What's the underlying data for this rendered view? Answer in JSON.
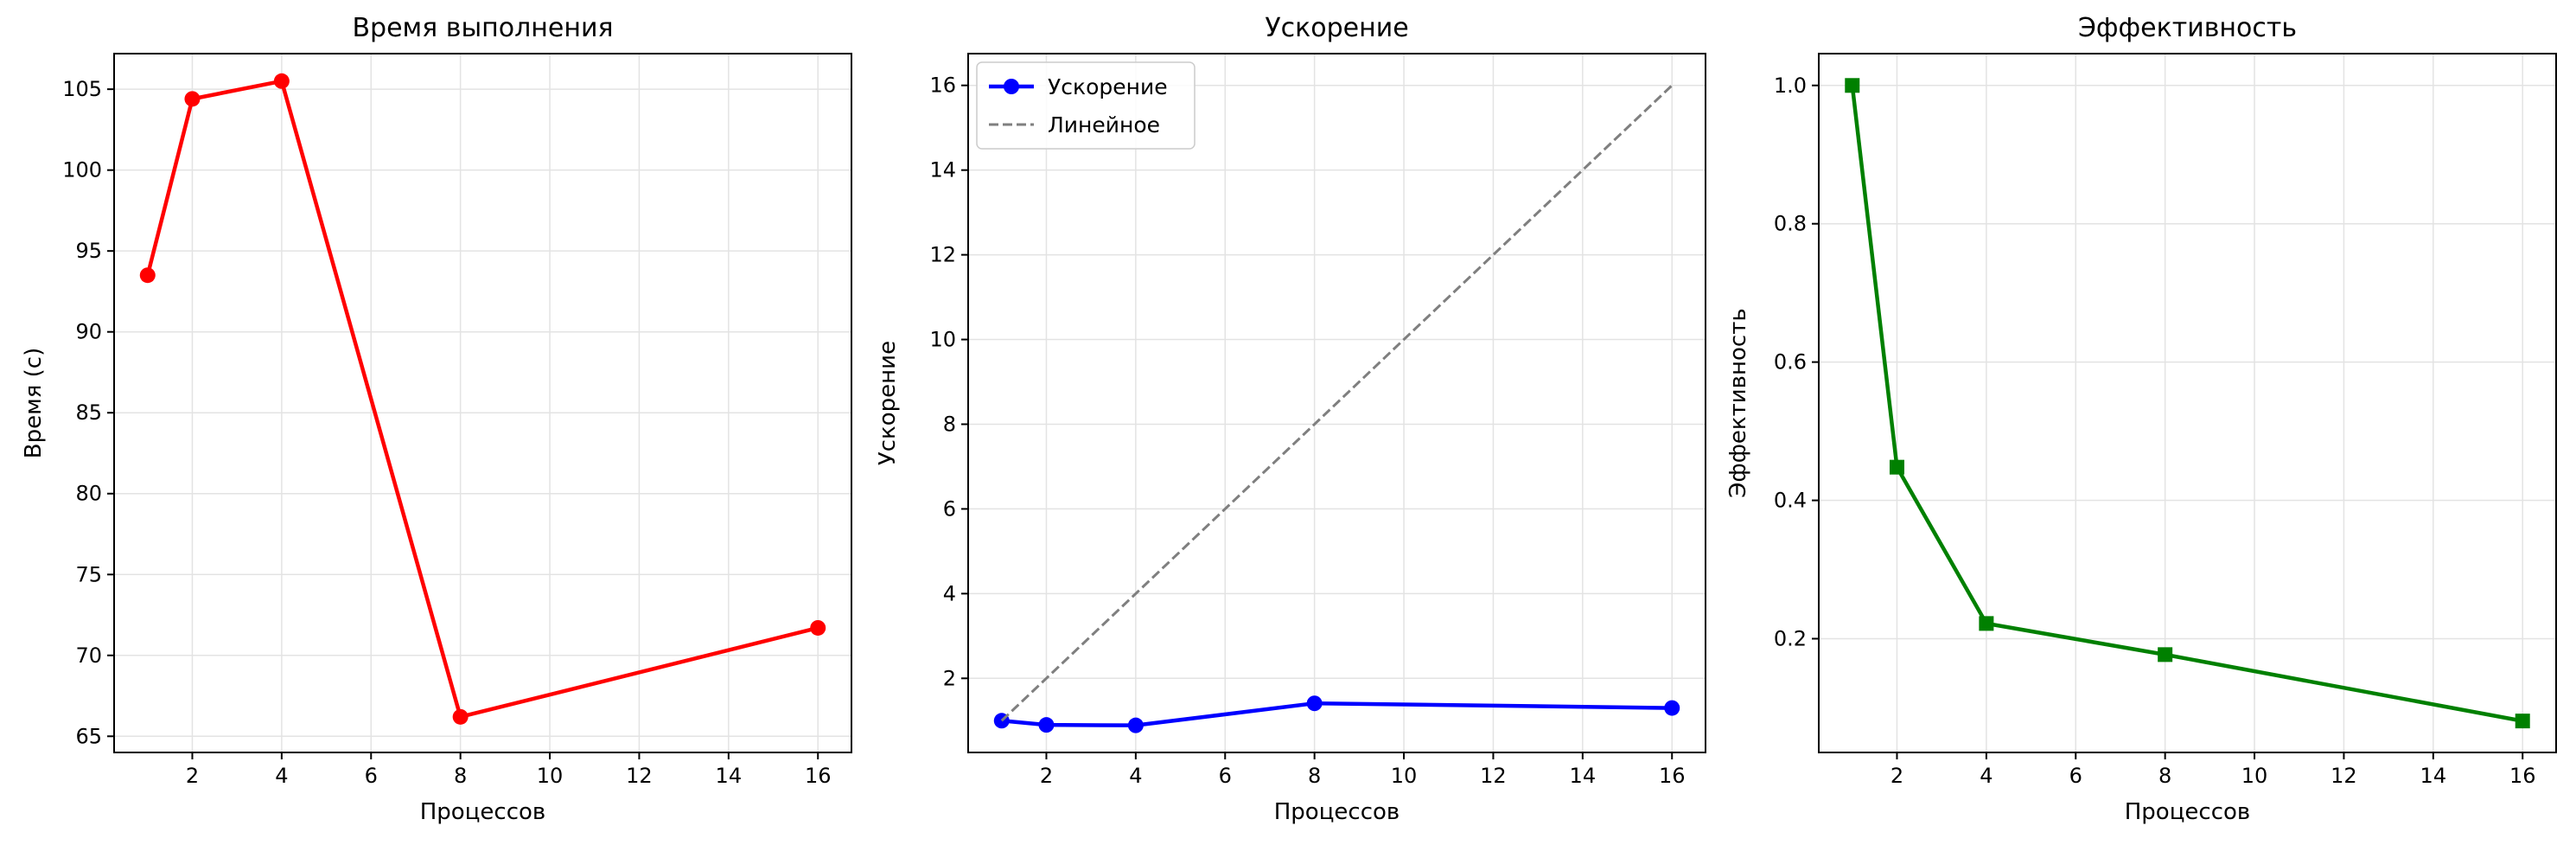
{
  "chart_data": [
    {
      "type": "line",
      "title": "Время выполнения",
      "xlabel": "Процессов",
      "ylabel": "Время (с)",
      "xlim": [
        0.25,
        16.75
      ],
      "ylim": [
        64.0,
        107.2
      ],
      "xticks": [
        2,
        4,
        6,
        8,
        10,
        12,
        14,
        16
      ],
      "yticks": [
        65,
        70,
        75,
        80,
        85,
        90,
        95,
        100,
        105
      ],
      "grid": true,
      "series": [
        {
          "x": [
            1,
            2,
            4,
            8,
            16
          ],
          "y": [
            93.5,
            104.4,
            105.5,
            66.2,
            71.7
          ],
          "color": "#ff0000",
          "marker": "circle",
          "line": "solid"
        }
      ]
    },
    {
      "type": "line",
      "title": "Ускорение",
      "xlabel": "Процессов",
      "ylabel": "Ускорение",
      "xlim": [
        0.25,
        16.75
      ],
      "ylim": [
        0.25,
        16.75
      ],
      "xticks": [
        2,
        4,
        6,
        8,
        10,
        12,
        14,
        16
      ],
      "yticks": [
        2,
        4,
        6,
        8,
        10,
        12,
        14,
        16
      ],
      "grid": true,
      "legend_position": "top-left",
      "series": [
        {
          "name": "Ускорение",
          "x": [
            1,
            2,
            4,
            8,
            16
          ],
          "y": [
            1.0,
            0.9,
            0.89,
            1.41,
            1.3
          ],
          "color": "#0000ff",
          "marker": "circle",
          "line": "solid"
        },
        {
          "name": "Линейное",
          "x": [
            1,
            16
          ],
          "y": [
            1,
            16
          ],
          "color": "#7f7f7f",
          "marker": "none",
          "line": "dashed"
        }
      ]
    },
    {
      "type": "line",
      "title": "Эффективность",
      "xlabel": "Процессов",
      "ylabel": "Эффективность",
      "xlim": [
        0.25,
        16.75
      ],
      "ylim": [
        0.0355,
        1.046
      ],
      "xticks": [
        2,
        4,
        6,
        8,
        10,
        12,
        14,
        16
      ],
      "yticks": [
        0.2,
        0.4,
        0.6,
        0.8,
        1.0
      ],
      "grid": true,
      "series": [
        {
          "x": [
            1,
            2,
            4,
            8,
            16
          ],
          "y": [
            1.0,
            0.448,
            0.222,
            0.177,
            0.081
          ],
          "color": "#008000",
          "marker": "square",
          "line": "solid"
        }
      ]
    }
  ]
}
